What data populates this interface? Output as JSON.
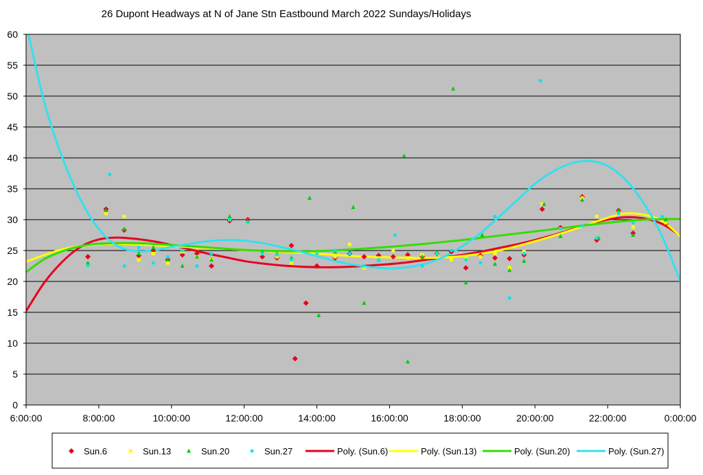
{
  "chart_data": {
    "type": "scatter",
    "title": "26 Dupont Headways at N of Jane Stn Eastbound March 2022  Sundays/Holidays",
    "xlabel": "",
    "ylabel": "",
    "xlim": [
      6,
      24
    ],
    "ylim": [
      0,
      60
    ],
    "x_tick_labels": [
      "6:00:00",
      "8:00:00",
      "10:00:00",
      "12:00:00",
      "14:00:00",
      "16:00:00",
      "18:00:00",
      "20:00:00",
      "22:00:00",
      "0:00:00"
    ],
    "y_tick_labels": [
      "0",
      "5",
      "10",
      "15",
      "20",
      "25",
      "30",
      "35",
      "40",
      "45",
      "50",
      "55",
      "60"
    ],
    "grid": true,
    "legend_position": "bottom",
    "background": "#c0c0c0",
    "series": [
      {
        "name": "Sun.6",
        "marker": "diamond",
        "color": "#e8001c",
        "x": [
          7.7,
          8.2,
          8.7,
          9.1,
          9.5,
          9.9,
          10.3,
          10.7,
          11.1,
          11.6,
          12.1,
          12.5,
          12.9,
          13.3,
          13.4,
          13.7,
          14.0,
          14.5,
          14.9,
          15.3,
          15.7,
          16.1,
          16.5,
          16.9,
          17.3,
          17.7,
          18.1,
          18.5,
          18.9,
          19.3,
          19.7,
          20.2,
          20.7,
          21.3,
          21.7,
          22.3,
          22.7,
          23.6
        ],
        "y": [
          24,
          31.7,
          28.3,
          24.2,
          25,
          23.5,
          24.3,
          24.5,
          22.5,
          29.8,
          30,
          24,
          23.8,
          25.8,
          7.5,
          16.5,
          22.5,
          23.8,
          24.5,
          24,
          24.2,
          24,
          24.3,
          24,
          24.5,
          24.8,
          22.2,
          24.2,
          23.8,
          23.7,
          24.3,
          31.7,
          28.7,
          33.7,
          26.7,
          31.5,
          27.8,
          29.3
        ]
      },
      {
        "name": "Sun.13",
        "marker": "square",
        "color": "#ffff00",
        "x": [
          7.7,
          8.2,
          8.7,
          9.1,
          9.5,
          9.9,
          10.3,
          10.7,
          11.1,
          11.6,
          12.1,
          12.5,
          12.9,
          13.3,
          14.0,
          14.5,
          14.9,
          15.3,
          15.7,
          16.1,
          16.5,
          16.9,
          17.3,
          17.7,
          18.1,
          18.5,
          18.9,
          19.3,
          19.7,
          20.2,
          20.7,
          21.3,
          21.7,
          22.3,
          22.7,
          23.6
        ],
        "y": [
          22.5,
          31,
          30.5,
          23.5,
          24.5,
          23,
          24.8,
          24,
          23.5,
          30,
          29.5,
          24.5,
          24,
          23,
          24.5,
          24,
          26,
          22.2,
          23.8,
          25,
          23.8,
          24.3,
          24.5,
          23.5,
          23.8,
          24,
          24.5,
          22.2,
          24.8,
          32.5,
          28.5,
          33.5,
          30.5,
          31.2,
          28.8,
          29.5
        ]
      },
      {
        "name": "Sun.20",
        "marker": "triangle",
        "color": "#00cc00",
        "x": [
          7.7,
          8.2,
          8.7,
          9.1,
          9.5,
          9.9,
          10.3,
          10.7,
          11.1,
          11.6,
          12.1,
          12.5,
          12.9,
          13.3,
          13.8,
          14.05,
          14.5,
          15.0,
          15.3,
          15.7,
          16.4,
          16.5,
          16.9,
          17.3,
          17.75,
          18.1,
          18.55,
          18.9,
          19.3,
          19.7,
          20.25,
          20.7,
          21.3,
          21.75,
          22.3,
          22.7,
          23.6
        ],
        "y": [
          23,
          31.5,
          28.5,
          24.5,
          25.5,
          23.5,
          22.5,
          24,
          23.5,
          30.5,
          29.8,
          24.8,
          24.5,
          23.8,
          33.5,
          14.5,
          24.8,
          32,
          16.5,
          23.5,
          40.3,
          7,
          24,
          24.8,
          51.2,
          19.8,
          27.5,
          22.8,
          21.8,
          23.3,
          32.5,
          27.3,
          33.2,
          27,
          31.5,
          27.5,
          30
        ]
      },
      {
        "name": "Sun.27",
        "marker": "circle",
        "color": "#00e5ee",
        "x": [
          7.7,
          8.3,
          8.7,
          9.1,
          9.5,
          9.9,
          10.3,
          10.7,
          11.1,
          11.6,
          12.1,
          12.5,
          12.9,
          13.3,
          14.0,
          14.5,
          14.9,
          15.3,
          15.7,
          16.15,
          16.9,
          17.3,
          17.7,
          18.1,
          18.5,
          18.9,
          19.3,
          19.7,
          20.15,
          20.7,
          21.3,
          21.7,
          22.3,
          22.7,
          23.5
        ],
        "y": [
          22.5,
          37.3,
          22.5,
          25.5,
          23,
          24,
          25,
          22.5,
          24.5,
          30,
          29.5,
          24.5,
          24.3,
          23.5,
          24.5,
          25,
          24.5,
          22.5,
          23.5,
          27.5,
          22.5,
          24.5,
          25,
          23.5,
          23,
          30.5,
          17.3,
          24.5,
          52.5,
          28.5,
          29,
          27,
          31,
          29.5,
          30.5
        ]
      }
    ],
    "trendlines": [
      {
        "name": "Poly. (Sun.6)",
        "color": "#e8001c",
        "type": "polynomial",
        "x": [
          6,
          6.5,
          7,
          7.5,
          8,
          8.5,
          9,
          9.5,
          10,
          10.5,
          11,
          11.5,
          12,
          12.5,
          13,
          13.5,
          14,
          14.5,
          15,
          15.5,
          16,
          16.5,
          17,
          17.5,
          18,
          18.5,
          19,
          19.5,
          20,
          20.5,
          21,
          21.5,
          22,
          22.5,
          23,
          23.5,
          24
        ],
        "y": [
          15.2,
          19.8,
          23.2,
          25.6,
          26.8,
          27.1,
          26.9,
          26.5,
          25.9,
          25.2,
          24.5,
          23.9,
          23.3,
          22.9,
          22.6,
          22.4,
          22.3,
          22.3,
          22.4,
          22.6,
          22.8,
          23.1,
          23.5,
          23.9,
          24.3,
          24.8,
          25.4,
          26.0,
          26.7,
          27.5,
          28.4,
          29.3,
          30.0,
          30.4,
          30.2,
          29.3,
          27.4
        ]
      },
      {
        "name": "Poly. (Sun.13)",
        "color": "#ffff00",
        "type": "polynomial",
        "x": [
          6,
          7,
          8,
          9,
          10,
          11,
          12,
          13,
          14,
          15,
          16,
          17,
          18,
          19,
          20,
          21,
          22,
          22.5,
          23,
          23.5,
          24
        ],
        "y": [
          23.2,
          25.2,
          26.0,
          26.0,
          25.7,
          25.4,
          25.1,
          24.8,
          24.5,
          24.1,
          23.9,
          23.8,
          24.1,
          25.0,
          26.5,
          28.3,
          30.3,
          31.0,
          30.8,
          29.8,
          27.3
        ]
      },
      {
        "name": "Poly. (Sun.20)",
        "color": "#33dd00",
        "type": "polynomial",
        "x": [
          6,
          6.5,
          7,
          7.5,
          8,
          9,
          10,
          11,
          12,
          13,
          14,
          15,
          16,
          17,
          18,
          19,
          20,
          21,
          22,
          23,
          24
        ],
        "y": [
          21.5,
          23.6,
          24.9,
          25.7,
          26.1,
          26.2,
          25.9,
          25.5,
          25.1,
          24.9,
          24.9,
          25.2,
          25.6,
          26.1,
          26.7,
          27.4,
          28.1,
          28.8,
          29.5,
          30.0,
          30.1
        ]
      },
      {
        "name": "Poly. (Sun.27)",
        "color": "#33e0ee",
        "type": "polynomial",
        "x": [
          6.05,
          6.5,
          7,
          7.5,
          8,
          8.5,
          9,
          9.5,
          10,
          10.5,
          11,
          11.5,
          12,
          12.5,
          13,
          13.5,
          14,
          14.5,
          15,
          15.5,
          16,
          16.5,
          17,
          17.5,
          18,
          18.5,
          19,
          19.5,
          20,
          20.5,
          21,
          21.5,
          22,
          22.5,
          23,
          23.5,
          24
        ],
        "y": [
          60.5,
          49,
          40,
          33.2,
          28.5,
          25.8,
          24.9,
          25,
          25.6,
          26.1,
          26.5,
          26.7,
          26.6,
          26.2,
          25.6,
          24.9,
          24.1,
          23.3,
          22.7,
          22.3,
          22.1,
          22.3,
          22.9,
          24,
          25.7,
          27.8,
          30.4,
          33.1,
          35.8,
          37.8,
          39.1,
          39.5,
          38.7,
          36.4,
          32.6,
          27.3,
          20.0
        ]
      }
    ]
  }
}
